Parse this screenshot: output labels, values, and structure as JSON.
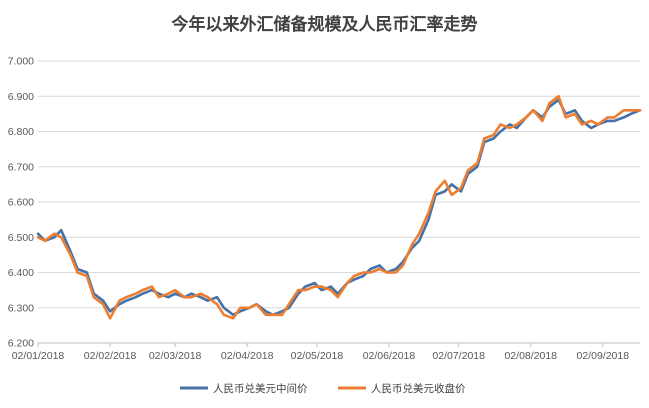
{
  "chart_data": {
    "type": "line",
    "title": "今年以来外汇储备规模及人民币汇率走势",
    "ylim": [
      6.2,
      7.0
    ],
    "yticks": [
      "6.200",
      "6.300",
      "6.400",
      "6.500",
      "6.600",
      "6.700",
      "6.800",
      "6.900",
      "7.000"
    ],
    "xticks": [
      "02/01/2018",
      "02/02/2018",
      "02/03/2018",
      "02/04/2018",
      "02/05/2018",
      "02/06/2018",
      "02/07/2018",
      "02/08/2018",
      "02/09/2018"
    ],
    "grid": "horizontal",
    "legend_position": "bottom",
    "x": [
      "01-02",
      "01-05",
      "01-09",
      "01-12",
      "01-16",
      "01-19",
      "01-23",
      "01-26",
      "01-30",
      "02-02",
      "02-06",
      "02-09",
      "02-13",
      "02-16",
      "02-20",
      "02-23",
      "02-27",
      "03-02",
      "03-06",
      "03-09",
      "03-13",
      "03-16",
      "03-20",
      "03-23",
      "03-27",
      "03-30",
      "04-03",
      "04-06",
      "04-10",
      "04-13",
      "04-17",
      "04-20",
      "04-24",
      "04-27",
      "05-01",
      "05-04",
      "05-08",
      "05-11",
      "05-15",
      "05-18",
      "05-22",
      "05-25",
      "05-29",
      "06-01",
      "06-05",
      "06-08",
      "06-12",
      "06-15",
      "06-19",
      "06-22",
      "06-26",
      "06-29",
      "07-03",
      "07-06",
      "07-10",
      "07-13",
      "07-17",
      "07-20",
      "07-24",
      "07-27",
      "07-31",
      "08-03",
      "08-07",
      "08-10",
      "08-14",
      "08-17",
      "08-21",
      "08-24",
      "08-28",
      "08-31",
      "09-04",
      "09-07",
      "09-11",
      "09-14",
      "09-18"
    ],
    "series": [
      {
        "name": "人民币兑美元中间价",
        "color": "#4472A8",
        "values": [
          6.51,
          6.49,
          6.5,
          6.52,
          6.46,
          6.41,
          6.4,
          6.34,
          6.32,
          6.29,
          6.31,
          6.32,
          6.33,
          6.34,
          6.35,
          6.34,
          6.33,
          6.34,
          6.33,
          6.34,
          6.33,
          6.32,
          6.33,
          6.3,
          6.28,
          6.29,
          6.3,
          6.31,
          6.29,
          6.28,
          6.29,
          6.3,
          6.34,
          6.36,
          6.37,
          6.35,
          6.36,
          6.34,
          6.37,
          6.38,
          6.39,
          6.41,
          6.42,
          6.4,
          6.41,
          6.43,
          6.47,
          6.49,
          6.55,
          6.62,
          6.63,
          6.65,
          6.63,
          6.68,
          6.7,
          6.77,
          6.78,
          6.8,
          6.82,
          6.81,
          6.84,
          6.86,
          6.84,
          6.87,
          6.89,
          6.85,
          6.86,
          6.83,
          6.81,
          6.82,
          6.83,
          6.83,
          6.84,
          6.85,
          6.86
        ]
      },
      {
        "name": "人民币兑美元收盘价",
        "color": "#ED7D31",
        "values": [
          6.5,
          6.49,
          6.51,
          6.5,
          6.45,
          6.4,
          6.39,
          6.33,
          6.31,
          6.27,
          6.32,
          6.33,
          6.34,
          6.35,
          6.36,
          6.33,
          6.34,
          6.35,
          6.33,
          6.33,
          6.34,
          6.33,
          6.31,
          6.28,
          6.27,
          6.3,
          6.3,
          6.31,
          6.28,
          6.28,
          6.28,
          6.31,
          6.35,
          6.35,
          6.36,
          6.36,
          6.35,
          6.33,
          6.37,
          6.39,
          6.4,
          6.4,
          6.41,
          6.4,
          6.4,
          6.42,
          6.48,
          6.51,
          6.57,
          6.63,
          6.66,
          6.62,
          6.64,
          6.69,
          6.71,
          6.78,
          6.79,
          6.82,
          6.81,
          6.82,
          6.84,
          6.86,
          6.83,
          6.88,
          6.9,
          6.84,
          6.85,
          6.82,
          6.83,
          6.82,
          6.84,
          6.84,
          6.86,
          6.86,
          6.86
        ]
      }
    ]
  }
}
